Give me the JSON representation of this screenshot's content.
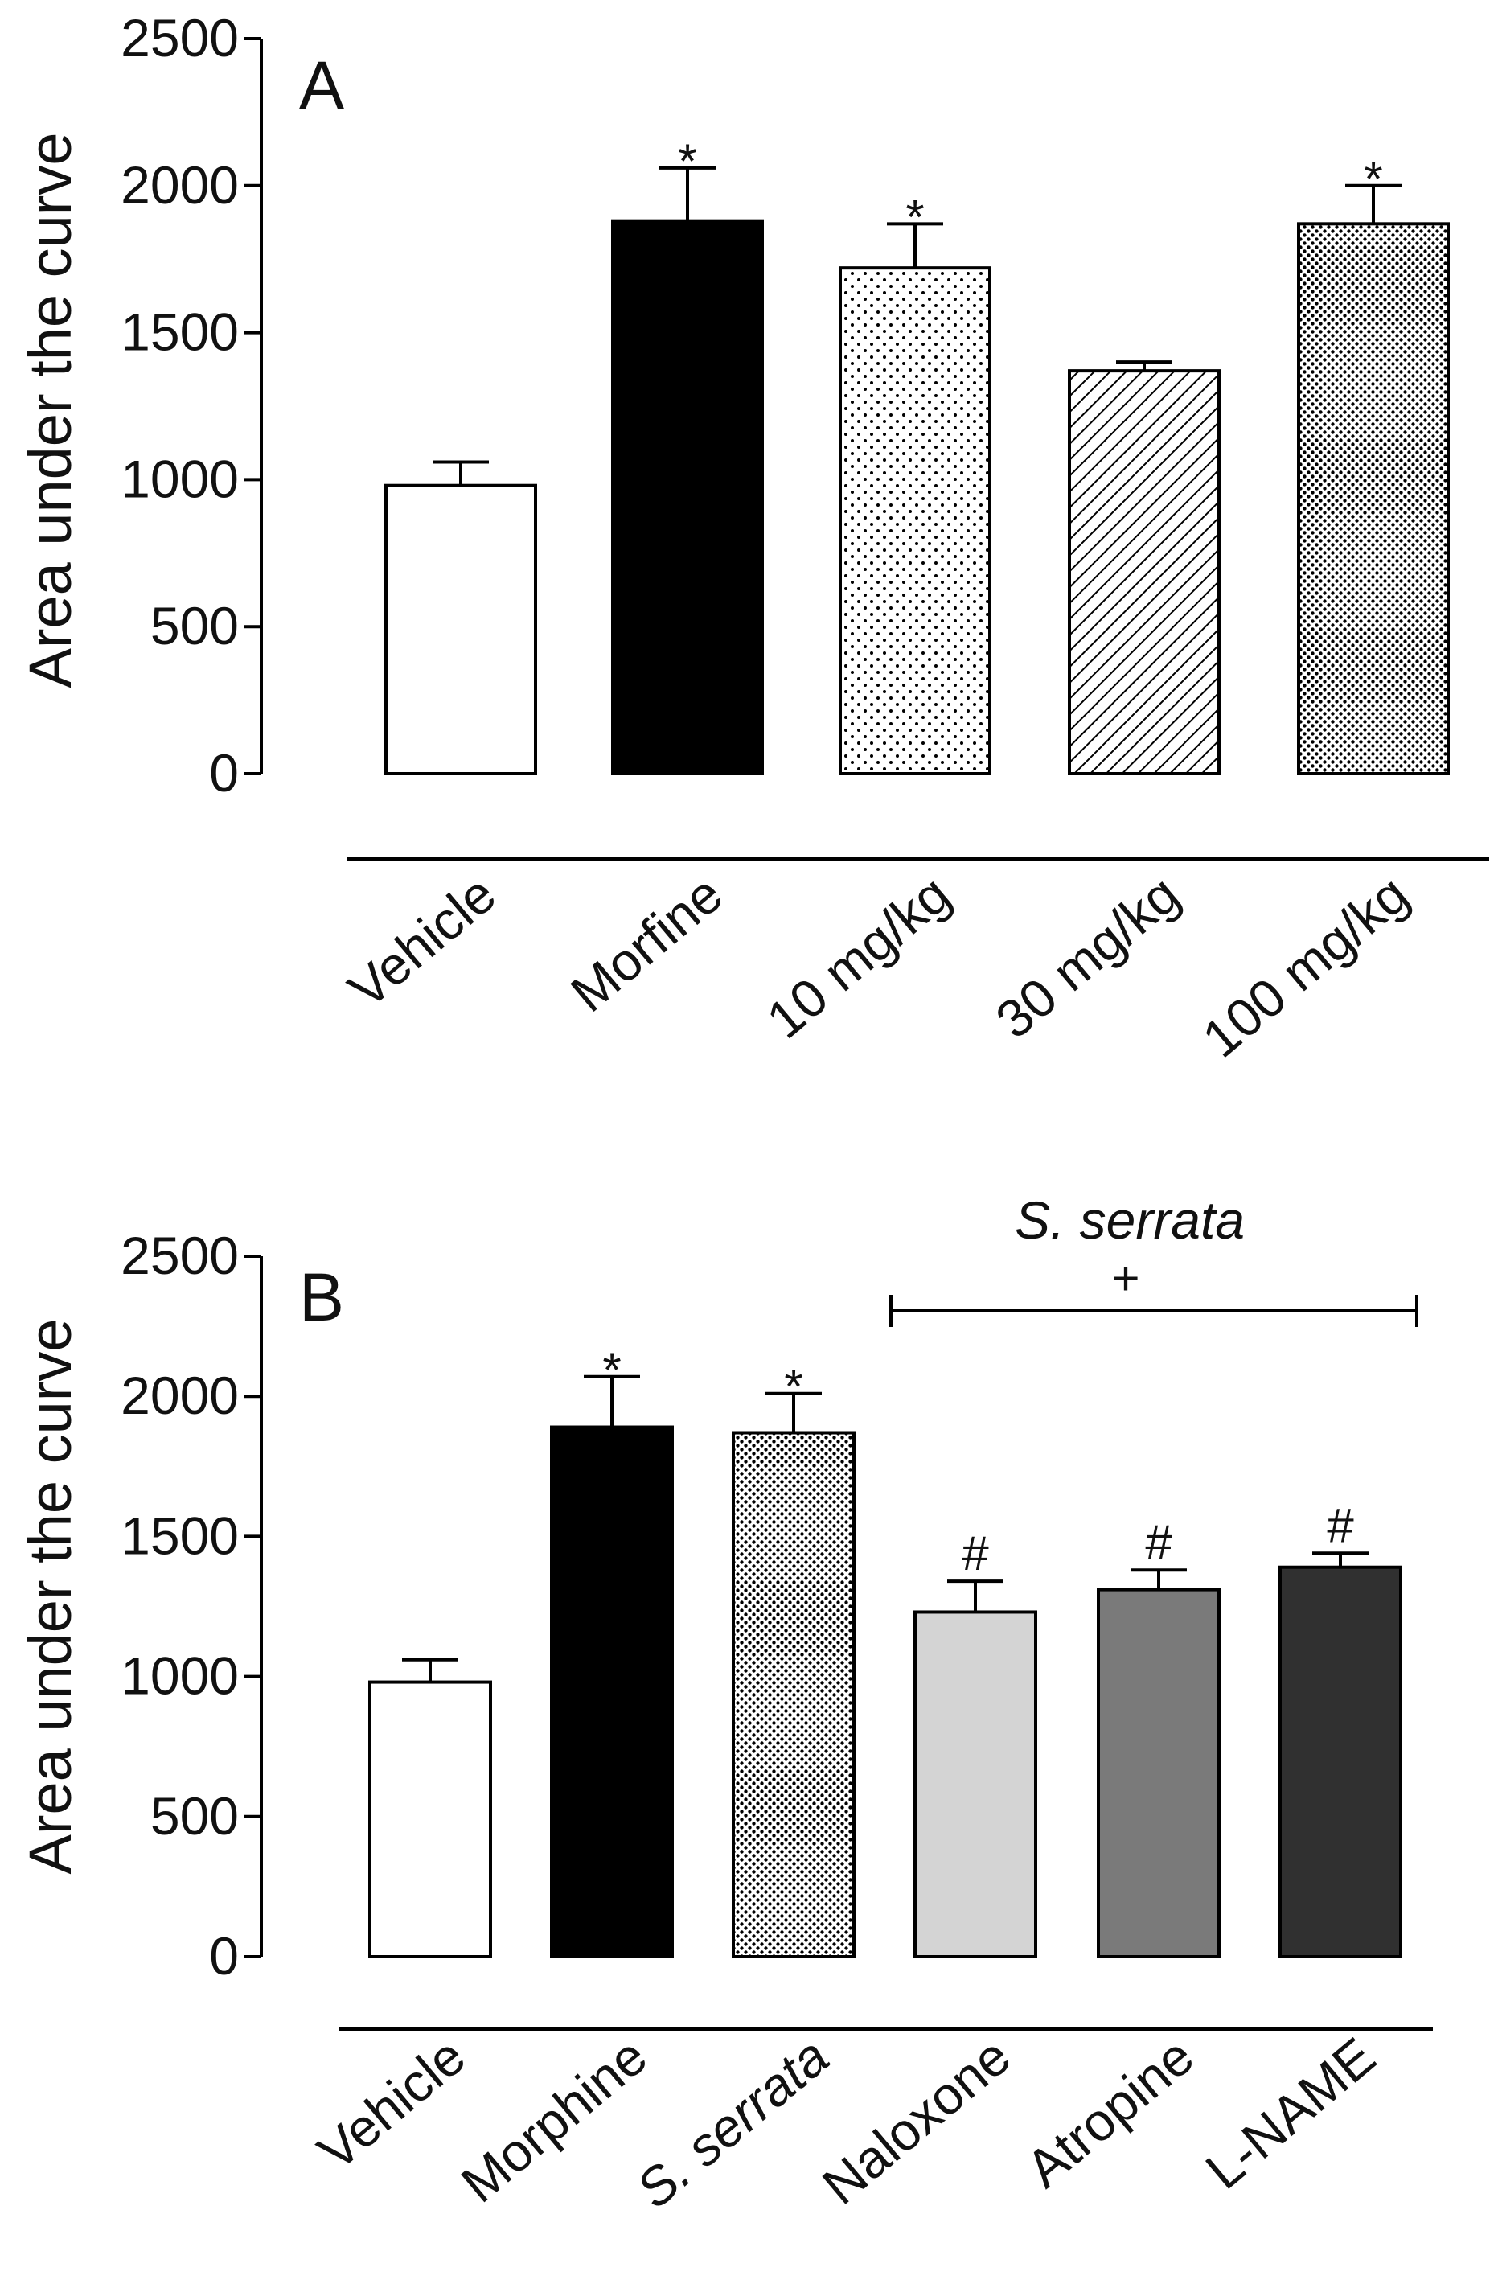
{
  "colors": {
    "axis": "#000000",
    "text": "#111111"
  },
  "chart_data": [
    {
      "panel": "A",
      "type": "bar",
      "ylabel": "Area under the curve",
      "ylim": [
        0,
        2500
      ],
      "yticks": [
        0,
        500,
        1000,
        1500,
        2000,
        2500
      ],
      "categories": [
        "Vehicle",
        "Morfine",
        "10 mg/kg",
        "30 mg/kg",
        "100 mg/kg"
      ],
      "values": [
        980,
        1880,
        1720,
        1370,
        1870
      ],
      "errors": [
        80,
        180,
        150,
        30,
        130
      ],
      "significance": [
        "",
        "*",
        "*",
        "",
        "*"
      ],
      "fills": [
        "white",
        "black",
        "sparse-dots",
        "diagonal-hatch",
        "dense-dots"
      ]
    },
    {
      "panel": "B",
      "type": "bar",
      "ylabel": "Area under the curve",
      "ylim": [
        0,
        2500
      ],
      "yticks": [
        0,
        500,
        1000,
        1500,
        2000,
        2500
      ],
      "categories": [
        "Vehicle",
        "Morphine",
        "S. serrata",
        "Naloxone",
        "Atropine",
        "L-NAME"
      ],
      "values": [
        980,
        1890,
        1870,
        1230,
        1310,
        1390
      ],
      "errors": [
        80,
        180,
        140,
        110,
        70,
        50
      ],
      "significance": [
        "",
        "*",
        "*",
        "#",
        "#",
        "#"
      ],
      "fills": [
        "white",
        "black",
        "dense-dots",
        "light-gray",
        "mid-gray",
        "dark-gray"
      ],
      "bracket": {
        "title": "S. serrata",
        "symbol": "+",
        "from_category": "Naloxone",
        "to_category": "L-NAME"
      }
    }
  ]
}
